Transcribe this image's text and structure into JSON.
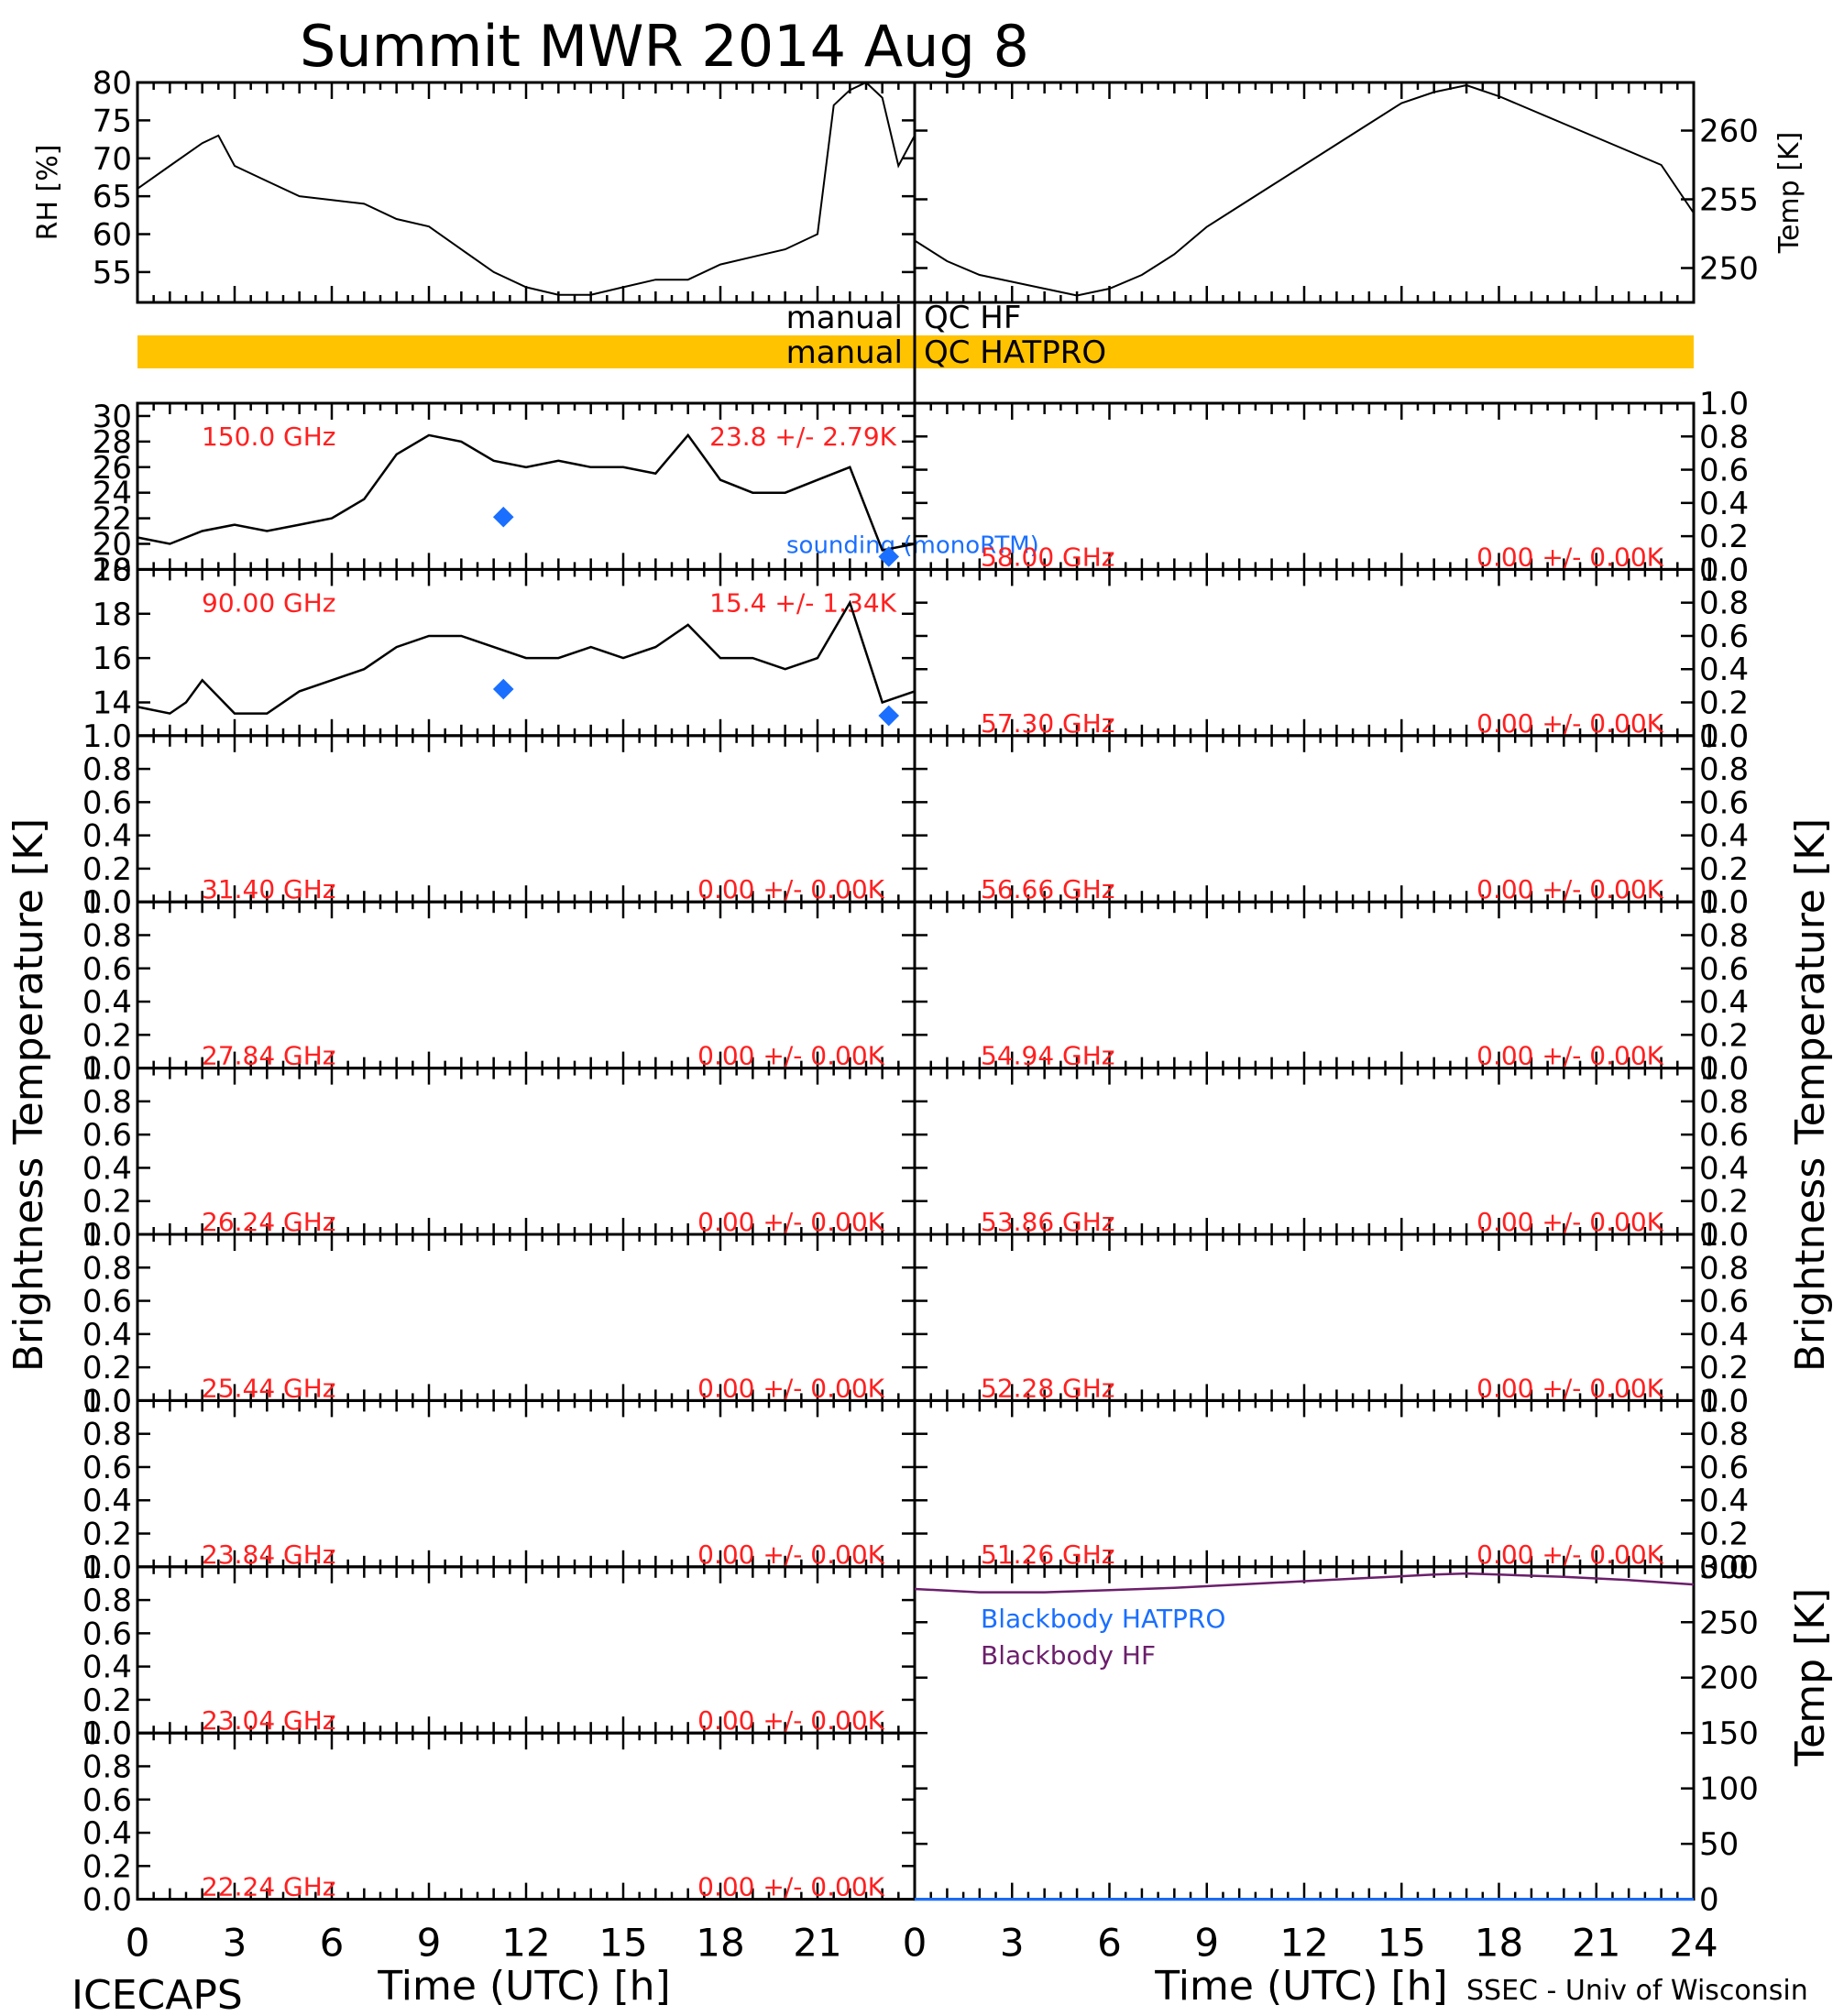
{
  "title": "Summit MWR 2014 Aug  8",
  "footer": {
    "left": "ICECAPS",
    "right": "SSEC - Univ of Wisconsin"
  },
  "qc": {
    "hf_left": "manual",
    "hf_right": "QC HF",
    "hatpro_left": "manual",
    "hatpro_right": "QC HATPRO",
    "hatpro_color": "#FFC300"
  },
  "colors": {
    "annot": "#FF2020",
    "sounding": "#1A6FFF",
    "bb_hatpro": "#1A6FFF",
    "bb_hf": "#6B1F6B",
    "trace": "#000000"
  },
  "axes_text": {
    "bt_ylabel": "Brightness Temperature [K]",
    "rh_ylabel": "RH [%]",
    "temp_ylabel": "Temp [K]",
    "bb_ylabel": "Temp [K]",
    "xlabel": "Time (UTC) [h]",
    "xticks": [
      "0",
      "3",
      "6",
      "9",
      "12",
      "15",
      "18",
      "21",
      "24"
    ],
    "xticks_left": [
      "0",
      "3",
      "6",
      "9",
      "12",
      "15",
      "18",
      "21"
    ],
    "unit_ticks": [
      "0.0",
      "0.2",
      "0.4",
      "0.6",
      "0.8",
      "1.0"
    ],
    "sounding_label": "sounding (monoRTM)",
    "bb_hatpro_label": "Blackbody HATPRO",
    "bb_hf_label": "Blackbody HF"
  },
  "chart_data": [
    {
      "type": "line",
      "name": "RH",
      "xlim": [
        0,
        24
      ],
      "ylim": [
        51,
        80
      ],
      "yticks": [
        "55",
        "60",
        "65",
        "70",
        "75",
        "80"
      ],
      "ylabel": "RH [%]",
      "x": [
        0,
        1,
        2,
        2.5,
        3,
        4,
        5,
        6,
        7,
        8,
        9,
        10,
        11,
        12,
        13,
        14,
        15,
        16,
        17,
        18,
        19,
        20,
        21,
        21.5,
        22,
        22.5,
        23,
        23.5,
        24
      ],
      "y": [
        66,
        69,
        72,
        73,
        69,
        67,
        65,
        64.5,
        64,
        62,
        61,
        58,
        55,
        53,
        52,
        52,
        53,
        54,
        54,
        56,
        57,
        58,
        60,
        77,
        79,
        80,
        78,
        69,
        73
      ]
    },
    {
      "type": "line",
      "name": "Temp",
      "xlim": [
        0,
        24
      ],
      "ylim": [
        247.5,
        263.5
      ],
      "yticks": [
        "250",
        "255",
        "260"
      ],
      "ylabel": "Temp [K]",
      "x": [
        0,
        1,
        2,
        3,
        4,
        5,
        6,
        7,
        8,
        9,
        10,
        11,
        12,
        13,
        14,
        15,
        16,
        17,
        18,
        19,
        20,
        21,
        22,
        23,
        24
      ],
      "y": [
        252,
        250.5,
        249.5,
        249,
        248.5,
        248,
        248.5,
        249.5,
        251,
        253,
        254.5,
        256,
        257.5,
        259,
        260.5,
        262,
        262.8,
        263.3,
        262.5,
        261.5,
        260.5,
        259.5,
        258.5,
        257.5,
        254
      ]
    },
    {
      "type": "line",
      "channel": "150.0 GHz",
      "stats": "23.8 +/-  2.79K",
      "xlim": [
        0,
        24
      ],
      "ylim": [
        18,
        31
      ],
      "yticks": [
        "18",
        "20",
        "22",
        "24",
        "26",
        "28",
        "30"
      ],
      "x": [
        0,
        1,
        2,
        3,
        4,
        5,
        6,
        7,
        8,
        9,
        10,
        11,
        12,
        13,
        14,
        15,
        16,
        17,
        18,
        19,
        20,
        21,
        22,
        23,
        24
      ],
      "y": [
        20.5,
        20,
        21,
        21.5,
        21,
        21.5,
        22,
        23.5,
        27,
        28.5,
        28,
        26.5,
        26,
        26.5,
        26,
        26,
        25.5,
        28.5,
        25,
        24,
        24,
        25,
        26,
        19.5,
        20
      ],
      "sounding": {
        "x": [
          11.3,
          23.2
        ],
        "y": [
          22.1,
          19.0
        ]
      }
    },
    {
      "type": "line",
      "channel": "90.00 GHz",
      "stats": "15.4 +/-  1.34K",
      "xlim": [
        0,
        24
      ],
      "ylim": [
        12.5,
        20
      ],
      "yticks": [
        "14",
        "16",
        "18",
        "20"
      ],
      "x": [
        0,
        1,
        1.5,
        2,
        3,
        4,
        5,
        6,
        7,
        8,
        9,
        10,
        11,
        12,
        13,
        14,
        15,
        16,
        17,
        18,
        19,
        20,
        21,
        22,
        23,
        24
      ],
      "y": [
        13.8,
        13.5,
        14,
        15,
        13.5,
        13.5,
        14.5,
        15,
        15.5,
        16.5,
        17,
        17,
        16.5,
        16,
        16,
        16.5,
        16,
        16.5,
        17.5,
        16,
        16,
        15.5,
        16,
        18.5,
        14,
        14.5
      ],
      "sounding": {
        "x": [
          11.3,
          23.2
        ],
        "y": [
          14.6,
          13.4
        ]
      }
    },
    {
      "type": "line",
      "name": "Blackbody",
      "xlim": [
        0,
        24
      ],
      "ylim": [
        0,
        300
      ],
      "yticks": [
        "0",
        "50",
        "100",
        "150",
        "200",
        "250",
        "300"
      ],
      "ylabel": "Temp [K]",
      "series": [
        {
          "name": "Blackbody HATPRO",
          "x": [
            0,
            24
          ],
          "y": [
            0,
            0
          ]
        },
        {
          "name": "Blackbody HF",
          "x": [
            0,
            2,
            4,
            6,
            8,
            10,
            12,
            14,
            16,
            17,
            18,
            20,
            22,
            24
          ],
          "y": [
            280,
            277,
            277,
            279,
            281,
            284,
            287,
            290,
            293,
            294,
            293,
            291,
            288,
            284
          ]
        }
      ]
    }
  ],
  "bt_panels": {
    "left": [
      {
        "channel": "31.40 GHz",
        "stats": "0.00 +/-  0.00K"
      },
      {
        "channel": "27.84 GHz",
        "stats": "0.00 +/-  0.00K"
      },
      {
        "channel": "26.24 GHz",
        "stats": "0.00 +/-  0.00K"
      },
      {
        "channel": "25.44 GHz",
        "stats": "0.00 +/-  0.00K"
      },
      {
        "channel": "23.84 GHz",
        "stats": "0.00 +/-  0.00K"
      },
      {
        "channel": "23.04 GHz",
        "stats": "0.00 +/-  0.00K"
      },
      {
        "channel": "22.24 GHz",
        "stats": "0.00 +/-  0.00K"
      }
    ],
    "right": [
      {
        "channel": "58.00 GHz",
        "stats": "0.00 +/-  0.00K"
      },
      {
        "channel": "57.30 GHz",
        "stats": "0.00 +/-  0.00K"
      },
      {
        "channel": "56.66 GHz",
        "stats": "0.00 +/-  0.00K"
      },
      {
        "channel": "54.94 GHz",
        "stats": "0.00 +/-  0.00K"
      },
      {
        "channel": "53.86 GHz",
        "stats": "0.00 +/-  0.00K"
      },
      {
        "channel": "52.28 GHz",
        "stats": "0.00 +/-  0.00K"
      },
      {
        "channel": "51.26 GHz",
        "stats": "0.00 +/-  0.00K"
      }
    ]
  }
}
